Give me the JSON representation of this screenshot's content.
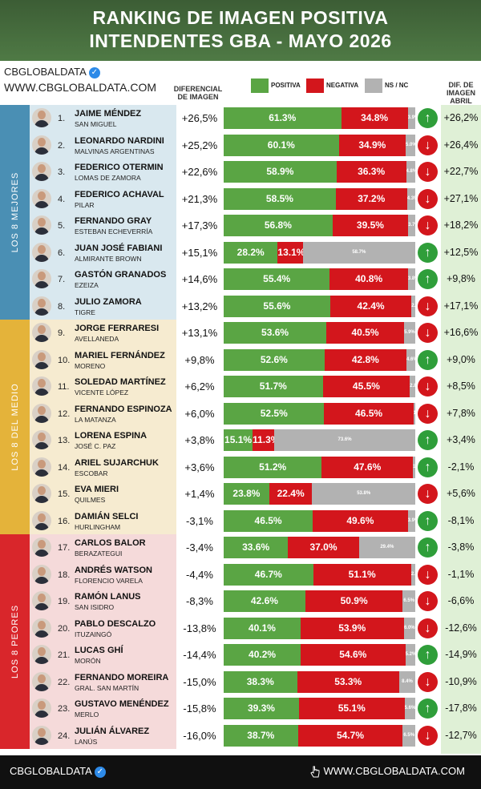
{
  "header": {
    "title_line1": "RANKING DE IMAGEN POSITIVA",
    "title_line2": "INTENDENTES GBA - MAYO 2026"
  },
  "brand": {
    "name": "CBGLOBALDATA",
    "url": "WWW.CBGLOBALDATA.COM",
    "badge_icon": "verified-check-icon"
  },
  "columns": {
    "diferencial": "DIFERENCIAL DE IMAGEN",
    "positiva": "POSITIVA",
    "negativa": "NEGATIVA",
    "nsnc": "NS / NC",
    "dif_abril": "DIF. DE IMAGEN ABRIL"
  },
  "groups": [
    {
      "label": "LOS 8 MEJORES",
      "color": "#4a8fb4"
    },
    {
      "label": "LOS 8 DEL MEDIO",
      "color": "#e4b33a"
    },
    {
      "label": "LOS 8 PEORES",
      "color": "#d9262b"
    }
  ],
  "colors": {
    "positiva": "#5aa544",
    "negativa": "#d3161c",
    "nsnc": "#b2b2b2",
    "up": "#2f9e3a",
    "down": "#d3161c"
  },
  "chart_data": {
    "type": "bar",
    "stacked": true,
    "orientation": "horizontal",
    "series_names": [
      "POSITIVA",
      "NEGATIVA",
      "NS / NC"
    ],
    "rows": [
      {
        "rank": "1.",
        "name": "JAIME MÉNDEZ",
        "municipio": "SAN MIGUEL",
        "diferencial": "+26,5%",
        "positiva": 61.3,
        "negativa": 34.8,
        "nsnc": 3.9,
        "positiva_label": "61.3%",
        "negativa_label": "34.8%",
        "nsnc_label": "3.9%",
        "trend": "up",
        "abril": "+26,2%"
      },
      {
        "rank": "2.",
        "name": "LEONARDO NARDINI",
        "municipio": "MALVINAS ARGENTINAS",
        "diferencial": "+25,2%",
        "positiva": 60.1,
        "negativa": 34.9,
        "nsnc": 5.0,
        "positiva_label": "60.1%",
        "negativa_label": "34.9%",
        "nsnc_label": "5.0%",
        "trend": "down",
        "abril": "+26,4%"
      },
      {
        "rank": "3.",
        "name": "FEDERICO OTERMIN",
        "municipio": "LOMAS DE ZAMORA",
        "diferencial": "+22,6%",
        "positiva": 58.9,
        "negativa": 36.3,
        "nsnc": 4.8,
        "positiva_label": "58.9%",
        "negativa_label": "36.3%",
        "nsnc_label": "4.8%",
        "trend": "down",
        "abril": "+22,7%"
      },
      {
        "rank": "4.",
        "name": "FEDERICO ACHAVAL",
        "municipio": "PILAR",
        "diferencial": "+21,3%",
        "positiva": 58.5,
        "negativa": 37.2,
        "nsnc": 4.3,
        "positiva_label": "58.5%",
        "negativa_label": "37.2%",
        "nsnc_label": "4.3%",
        "trend": "down",
        "abril": "+27,1%"
      },
      {
        "rank": "5.",
        "name": "FERNANDO GRAY",
        "municipio": "ESTEBAN ECHEVERRÍA",
        "diferencial": "+17,3%",
        "positiva": 56.8,
        "negativa": 39.5,
        "nsnc": 3.7,
        "positiva_label": "56.8%",
        "negativa_label": "39.5%",
        "nsnc_label": "3.7%",
        "trend": "down",
        "abril": "+18,2%"
      },
      {
        "rank": "6.",
        "name": "JUAN JOSÉ FABIANI",
        "municipio": "ALMIRANTE BROWN",
        "diferencial": "+15,1%",
        "positiva": 28.2,
        "negativa": 13.1,
        "nsnc": 58.7,
        "positiva_label": "28.2%",
        "negativa_label": "13.1%",
        "nsnc_label": "58.7%",
        "trend": "up",
        "abril": "+12,5%"
      },
      {
        "rank": "7.",
        "name": "GASTÓN GRANADOS",
        "municipio": "EZEIZA",
        "diferencial": "+14,6%",
        "positiva": 55.4,
        "negativa": 40.8,
        "nsnc": 3.8,
        "positiva_label": "55.4%",
        "negativa_label": "40.8%",
        "nsnc_label": "3.8%",
        "trend": "up",
        "abril": "+9,8%"
      },
      {
        "rank": "8.",
        "name": "JULIO ZAMORA",
        "municipio": "TIGRE",
        "diferencial": "+13,2%",
        "positiva": 55.6,
        "negativa": 42.4,
        "nsnc": 2.0,
        "positiva_label": "55.6%",
        "negativa_label": "42.4%",
        "nsnc_label": "2.0%",
        "trend": "down",
        "abril": "+17,1%"
      },
      {
        "rank": "9.",
        "name": "JORGE FERRARESI",
        "municipio": "AVELLANEDA",
        "diferencial": "+13,1%",
        "positiva": 53.6,
        "negativa": 40.5,
        "nsnc": 5.9,
        "positiva_label": "53.6%",
        "negativa_label": "40.5%",
        "nsnc_label": "5.9%",
        "trend": "down",
        "abril": "+16,6%"
      },
      {
        "rank": "10.",
        "name": "MARIEL FERNÁNDEZ",
        "municipio": "MORENO",
        "diferencial": "+9,8%",
        "positiva": 52.6,
        "negativa": 42.8,
        "nsnc": 4.6,
        "positiva_label": "52.6%",
        "negativa_label": "42.8%",
        "nsnc_label": "4.6%",
        "trend": "up",
        "abril": "+9,0%"
      },
      {
        "rank": "11.",
        "name": "SOLEDAD MARTÍNEZ",
        "municipio": "VICENTE LÓPEZ",
        "diferencial": "+6,2%",
        "positiva": 51.7,
        "negativa": 45.5,
        "nsnc": 2.8,
        "positiva_label": "51.7%",
        "negativa_label": "45.5%",
        "nsnc_label": "2.8%",
        "trend": "down",
        "abril": "+8,5%"
      },
      {
        "rank": "12.",
        "name": "FERNANDO ESPINOZA",
        "municipio": "LA MATANZA",
        "diferencial": "+6,0%",
        "positiva": 52.5,
        "negativa": 46.5,
        "nsnc": 1.0,
        "positiva_label": "52.5%",
        "negativa_label": "46.5%",
        "nsnc_label": "1.0%",
        "trend": "down",
        "abril": "+7,8%"
      },
      {
        "rank": "13.",
        "name": "LORENA ESPINA",
        "municipio": "JOSÉ C. PAZ",
        "diferencial": "+3,8%",
        "positiva": 15.1,
        "negativa": 11.3,
        "nsnc": 73.6,
        "positiva_label": "15.1%",
        "negativa_label": "11.3%",
        "nsnc_label": "73.6%",
        "trend": "up",
        "abril": "+3,4%"
      },
      {
        "rank": "14.",
        "name": "ARIEL SUJARCHUK",
        "municipio": "ESCOBAR",
        "diferencial": "+3,6%",
        "positiva": 51.2,
        "negativa": 47.6,
        "nsnc": 1.2,
        "positiva_label": "51.2%",
        "negativa_label": "47.6%",
        "nsnc_label": "1.2%",
        "trend": "up",
        "abril": "-2,1%"
      },
      {
        "rank": "15.",
        "name": "EVA MIERI",
        "municipio": "QUILMES",
        "diferencial": "+1,4%",
        "positiva": 23.8,
        "negativa": 22.4,
        "nsnc": 53.8,
        "positiva_label": "23.8%",
        "negativa_label": "22.4%",
        "nsnc_label": "53.8%",
        "trend": "down",
        "abril": "+5,6%"
      },
      {
        "rank": "16.",
        "name": "DAMIÁN SELCI",
        "municipio": "HURLINGHAM",
        "diferencial": "-3,1%",
        "positiva": 46.5,
        "negativa": 49.6,
        "nsnc": 3.9,
        "positiva_label": "46.5%",
        "negativa_label": "49.6%",
        "nsnc_label": "3.9%",
        "trend": "up",
        "abril": "-8,1%"
      },
      {
        "rank": "17.",
        "name": "CARLOS BALOR",
        "municipio": "BERAZATEGUI",
        "diferencial": "-3,4%",
        "positiva": 33.6,
        "negativa": 37.0,
        "nsnc": 29.4,
        "positiva_label": "33.6%",
        "negativa_label": "37.0%",
        "nsnc_label": "29.4%",
        "trend": "up",
        "abril": "-3,8%"
      },
      {
        "rank": "18.",
        "name": "ANDRÉS WATSON",
        "municipio": "FLORENCIO VARELA",
        "diferencial": "-4,4%",
        "positiva": 46.7,
        "negativa": 51.1,
        "nsnc": 2.2,
        "positiva_label": "46.7%",
        "negativa_label": "51.1%",
        "nsnc_label": "2.2%",
        "trend": "down",
        "abril": "-1,1%"
      },
      {
        "rank": "19.",
        "name": "RAMÓN LANUS",
        "municipio": "SAN ISIDRO",
        "diferencial": "-8,3%",
        "positiva": 42.6,
        "negativa": 50.9,
        "nsnc": 6.5,
        "positiva_label": "42.6%",
        "negativa_label": "50.9%",
        "nsnc_label": "6.5%",
        "trend": "down",
        "abril": "-6,6%"
      },
      {
        "rank": "20.",
        "name": "PABLO DESCALZO",
        "municipio": "ITUZAINGÓ",
        "diferencial": "-13,8%",
        "positiva": 40.1,
        "negativa": 53.9,
        "nsnc": 6.0,
        "positiva_label": "40.1%",
        "negativa_label": "53.9%",
        "nsnc_label": "6.0%",
        "trend": "down",
        "abril": "-12,6%"
      },
      {
        "rank": "21.",
        "name": "LUCAS GHÍ",
        "municipio": "MORÓN",
        "diferencial": "-14,4%",
        "positiva": 40.2,
        "negativa": 54.6,
        "nsnc": 5.2,
        "positiva_label": "40.2%",
        "negativa_label": "54.6%",
        "nsnc_label": "5.2%",
        "trend": "up",
        "abril": "-14,9%"
      },
      {
        "rank": "22.",
        "name": "FERNANDO MOREIRA",
        "municipio": "GRAL. SAN MARTÍN",
        "diferencial": "-15,0%",
        "positiva": 38.3,
        "negativa": 53.3,
        "nsnc": 8.4,
        "positiva_label": "38.3%",
        "negativa_label": "53.3%",
        "nsnc_label": "8.4%",
        "trend": "down",
        "abril": "-10,9%"
      },
      {
        "rank": "23.",
        "name": "GUSTAVO MENÉNDEZ",
        "municipio": "MERLO",
        "diferencial": "-15,8%",
        "positiva": 39.3,
        "negativa": 55.1,
        "nsnc": 5.6,
        "positiva_label": "39.3%",
        "negativa_label": "55.1%",
        "nsnc_label": "5.6%",
        "trend": "up",
        "abril": "-17,8%"
      },
      {
        "rank": "24.",
        "name": "JULIÁN ÁLVAREZ",
        "municipio": "LANÚS",
        "diferencial": "-16,0%",
        "positiva": 38.7,
        "negativa": 54.7,
        "nsnc": 6.5,
        "positiva_label": "38.7%",
        "negativa_label": "54.7%",
        "nsnc_label": "6.5%",
        "trend": "down",
        "abril": "-12,7%"
      }
    ]
  },
  "footer": {
    "left": "CBGLOBALDATA",
    "right": "WWW.CBGLOBALDATA.COM",
    "right_icon": "pointer-hand-icon"
  }
}
